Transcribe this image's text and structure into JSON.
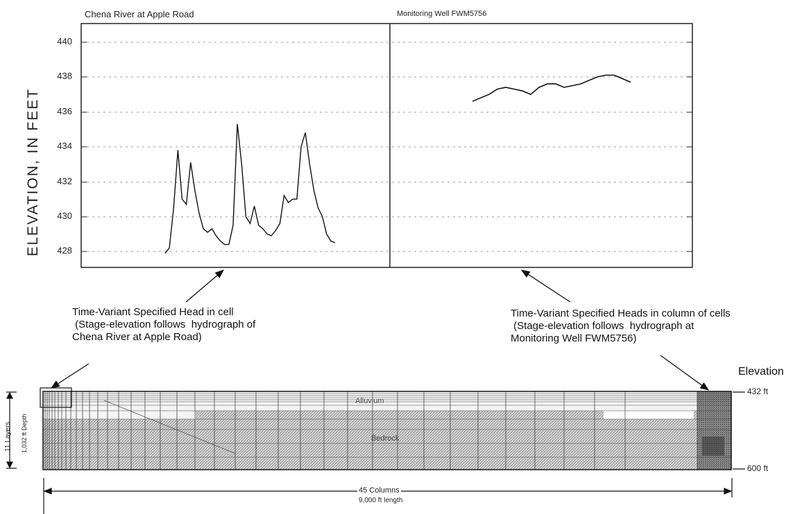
{
  "hydrograph": {
    "left_title": "Chena River at Apple Road",
    "right_title": "Monitoring Well FWM5756",
    "ylabel": "ELEVATION, IN FEET",
    "yticks": [
      "440",
      "438",
      "436",
      "434",
      "432",
      "430",
      "428"
    ]
  },
  "chart_data": {
    "type": "line",
    "ylabel": "ELEVATION, IN FEET",
    "ylim": [
      427,
      441
    ],
    "grid": true,
    "series": [
      {
        "name": "Chena River at Apple Road",
        "y": [
          427.9,
          428.2,
          430.5,
          433.8,
          431.0,
          430.7,
          433.1,
          431.5,
          430.2,
          429.3,
          429.1,
          429.3,
          428.9,
          428.6,
          428.4,
          428.4,
          429.5,
          435.3,
          433.0,
          430.0,
          429.6,
          430.6,
          429.5,
          429.3,
          429.0,
          428.9,
          429.2,
          429.6,
          431.2,
          430.8,
          431.0,
          431.0,
          434.0,
          434.8,
          433.0,
          431.5,
          430.5,
          430.0,
          429.0,
          428.6,
          428.5
        ]
      },
      {
        "name": "Monitoring Well FWM5756",
        "y": [
          436.6,
          436.8,
          437.0,
          437.3,
          437.4,
          437.3,
          437.2,
          437.0,
          437.4,
          437.6,
          437.6,
          437.4,
          437.5,
          437.6,
          437.8,
          438.0,
          438.1,
          438.1,
          437.9,
          437.7
        ]
      }
    ]
  },
  "callouts": {
    "left": "Time-Variant Specified Head in cell\n (Stage-elevation follows  hydrograph of\nChena River at Apple Road)",
    "right": "Time-Variant Specified Heads in column of cells\n (Stage-elevation follows  hydrograph at\nMonitoring Well FWM5756)"
  },
  "grid_section": {
    "elevation_header": "Elevation",
    "top_elevation": "432 ft",
    "bottom_elevation": "600 ft",
    "alluvium": "Alluvium",
    "bedrock": "Bedrock",
    "layers_line1": "11 Layers",
    "layers_line2": "1,032 ft Depth",
    "columns_line1": "45 Columns",
    "columns_line2": "9,000 ft length"
  }
}
